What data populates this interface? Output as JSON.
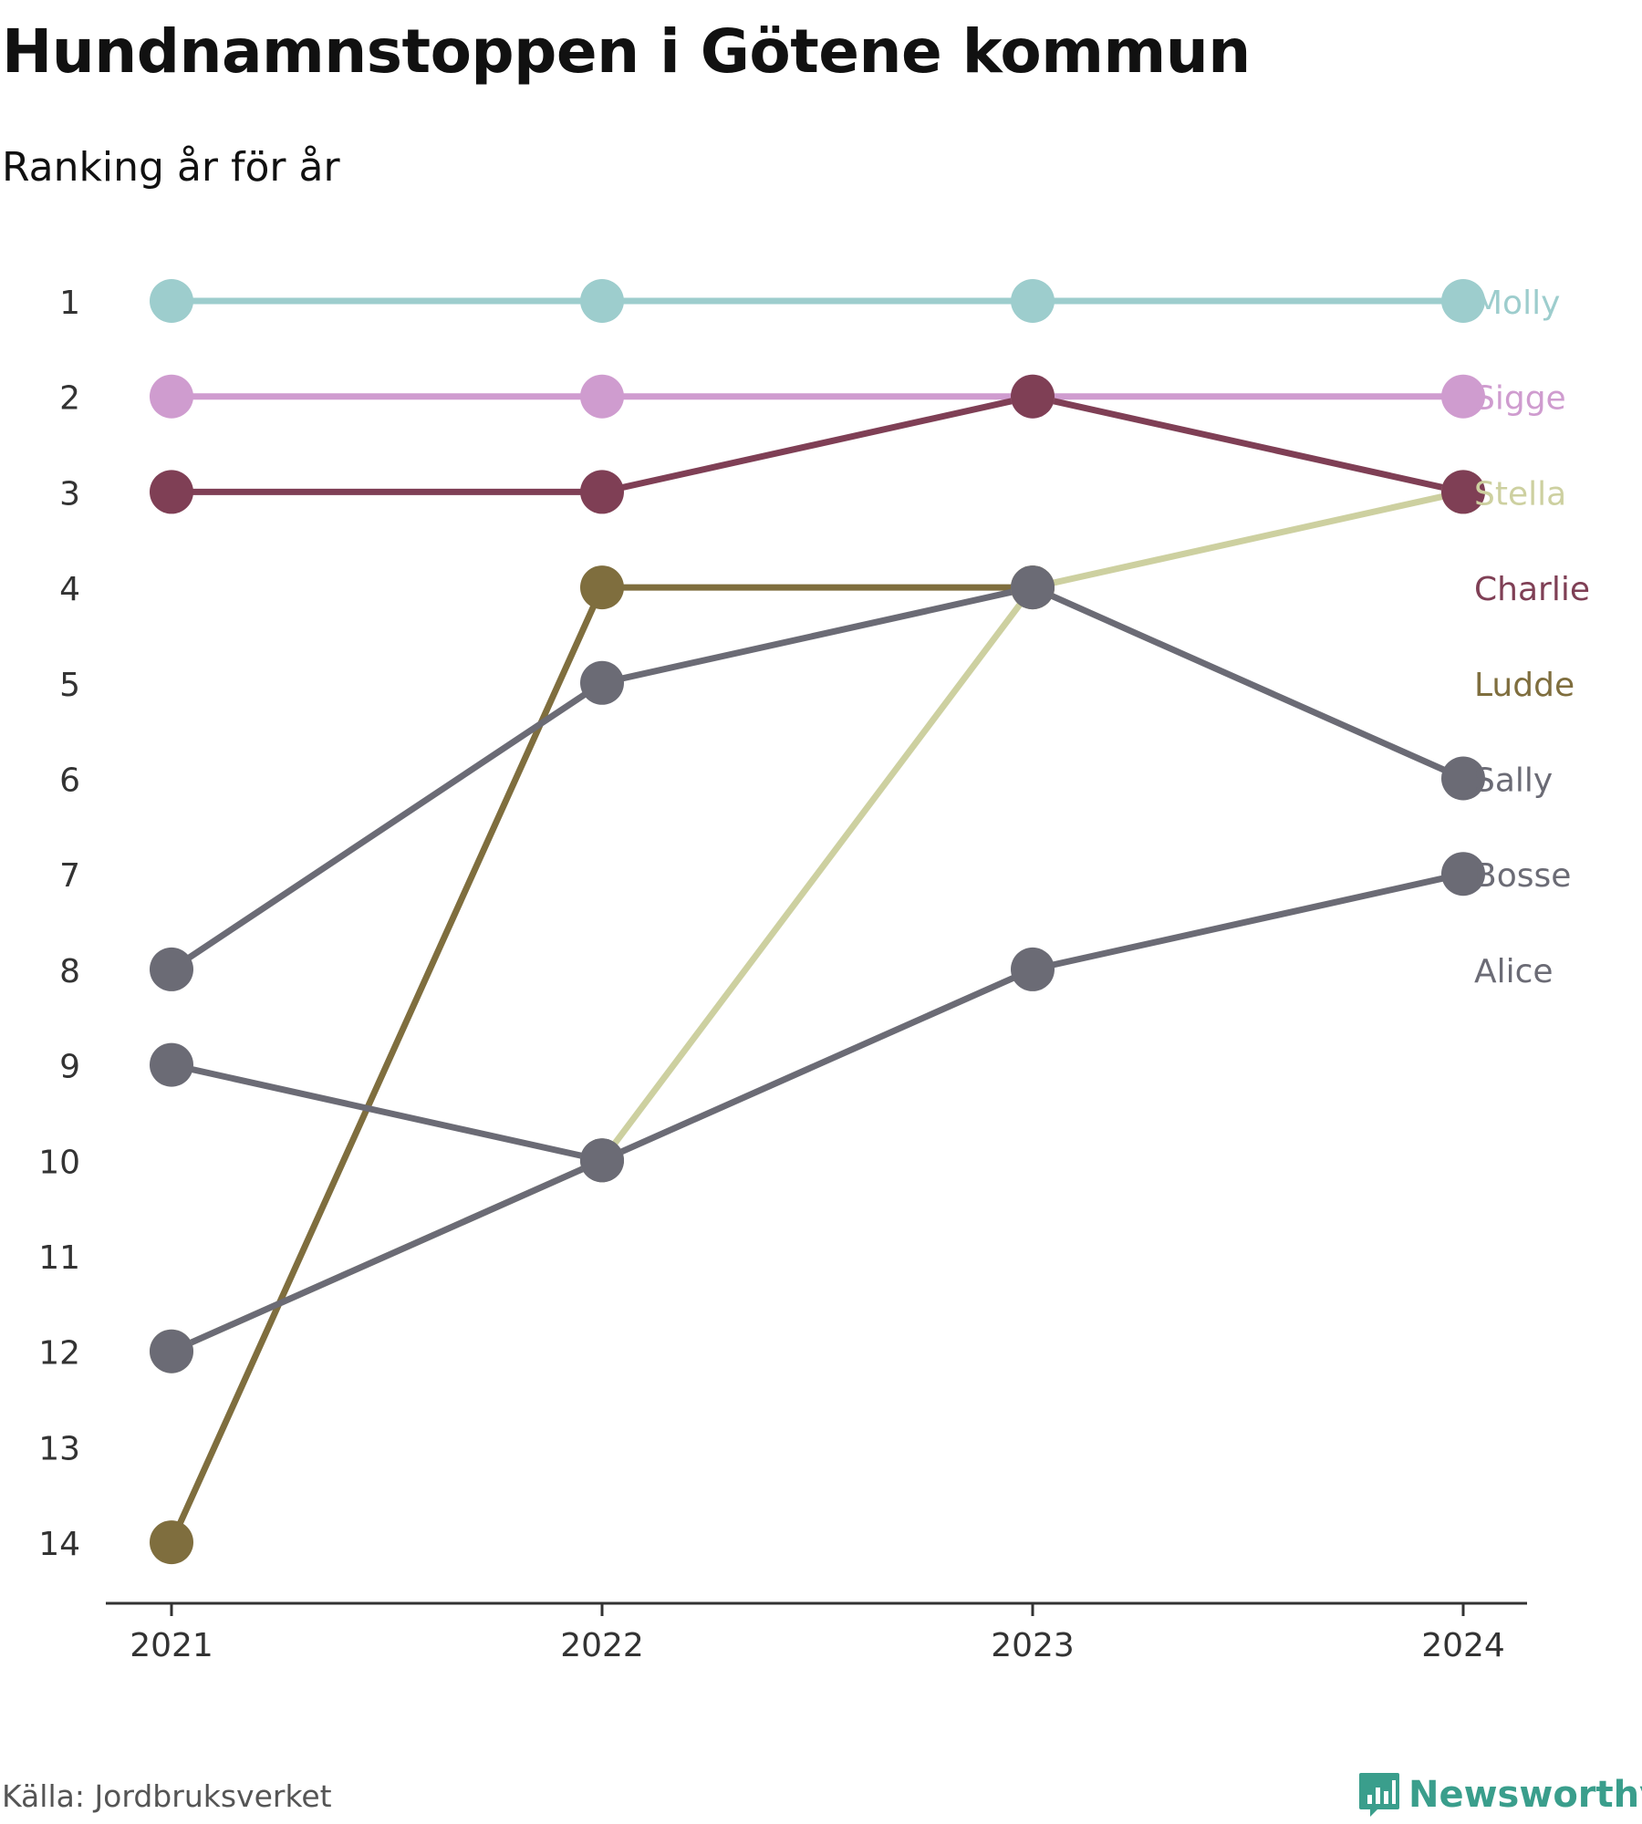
{
  "title": "Hundnamnstoppen i Götene kommun",
  "subtitle": "Ranking år för år",
  "source": "Källa: Jordbruksverket",
  "brand": "Newsworthy",
  "chart_data": {
    "type": "line",
    "x": [
      "2021",
      "2022",
      "2023",
      "2024"
    ],
    "y_ticks": [
      1,
      2,
      3,
      4,
      5,
      6,
      7,
      8,
      9,
      10,
      11,
      12,
      13,
      14
    ],
    "ylim": [
      14,
      1
    ],
    "y_inverted": true,
    "grid": false,
    "legend": "labels at line ends, right",
    "series": [
      {
        "name": "Molly",
        "values": [
          1,
          1,
          1,
          1
        ],
        "color": "#9dcdcd"
      },
      {
        "name": "Sigge",
        "values": [
          2,
          2,
          2,
          2
        ],
        "color": "#cf9ccf"
      },
      {
        "name": "Stella",
        "values": [
          12,
          10,
          4,
          3
        ],
        "color": "#cdd0a0"
      },
      {
        "name": "Charlie",
        "values": [
          3,
          3,
          2,
          3
        ],
        "color": "#7f3f55"
      },
      {
        "name": "Ludde",
        "values": [
          14,
          4,
          4,
          null
        ],
        "color": "#7f6e3e"
      },
      {
        "name": "Sally",
        "values": [
          8,
          5,
          4,
          6
        ],
        "color": "#6b6b75"
      },
      {
        "name": "Bosse",
        "values": [
          12,
          10,
          8,
          7
        ],
        "color": "#6b6b75"
      },
      {
        "name": "Alice",
        "values": [
          9,
          10,
          null,
          null
        ],
        "color": "#6b6b75"
      }
    ]
  }
}
